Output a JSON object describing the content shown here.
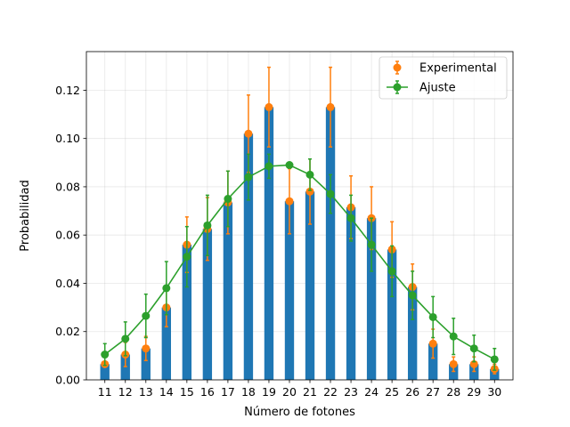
{
  "chart_data": {
    "type": "bar",
    "xlabel": "Número de fotones",
    "ylabel": "Probabilidad",
    "xlim": [
      10.1,
      30.9
    ],
    "ylim": [
      0.0,
      0.136
    ],
    "x_ticks": [
      11,
      12,
      13,
      14,
      15,
      16,
      17,
      18,
      19,
      20,
      21,
      22,
      23,
      24,
      25,
      26,
      27,
      28,
      29,
      30
    ],
    "y_ticks": [
      0.0,
      0.02,
      0.04,
      0.06,
      0.08,
      0.1,
      0.12
    ],
    "y_tick_labels": [
      "0.00",
      "0.02",
      "0.04",
      "0.06",
      "0.08",
      "0.10",
      "0.12"
    ],
    "grid": true,
    "legend_position": "upper right",
    "bars": {
      "color": "#1f77b4",
      "x": [
        11,
        12,
        13,
        14,
        15,
        16,
        17,
        18,
        19,
        20,
        21,
        22,
        23,
        24,
        25,
        26,
        27,
        28,
        29,
        30
      ],
      "values": [
        0.0065,
        0.0105,
        0.013,
        0.03,
        0.056,
        0.0625,
        0.0735,
        0.102,
        0.113,
        0.074,
        0.078,
        0.113,
        0.0715,
        0.067,
        0.054,
        0.0385,
        0.015,
        0.0065,
        0.0065,
        0.0045
      ]
    },
    "series": [
      {
        "name": "Experimental",
        "color": "#ff7f0e",
        "x": [
          11,
          12,
          13,
          14,
          15,
          16,
          17,
          18,
          19,
          20,
          21,
          22,
          23,
          24,
          25,
          26,
          27,
          28,
          29,
          30
        ],
        "values": [
          0.0065,
          0.0105,
          0.013,
          0.03,
          0.056,
          0.0625,
          0.0735,
          0.102,
          0.113,
          0.074,
          0.078,
          0.113,
          0.0715,
          0.067,
          0.054,
          0.0385,
          0.015,
          0.0065,
          0.0065,
          0.0045
        ],
        "errors": [
          0.001,
          0.005,
          0.005,
          0.008,
          0.0115,
          0.013,
          0.013,
          0.016,
          0.0165,
          0.0135,
          0.0135,
          0.0165,
          0.013,
          0.013,
          0.0115,
          0.0095,
          0.006,
          0.003,
          0.003,
          0.002
        ]
      },
      {
        "name": "Ajuste",
        "color": "#2ca02c",
        "x": [
          11,
          12,
          13,
          14,
          15,
          16,
          17,
          18,
          19,
          20,
          21,
          22,
          23,
          24,
          25,
          26,
          27,
          28,
          29,
          30
        ],
        "values": [
          0.0105,
          0.017,
          0.0265,
          0.038,
          0.051,
          0.064,
          0.075,
          0.084,
          0.0885,
          0.089,
          0.085,
          0.077,
          0.067,
          0.056,
          0.045,
          0.035,
          0.026,
          0.018,
          0.013,
          0.0085
        ],
        "errors": [
          0.0045,
          0.007,
          0.009,
          0.011,
          0.0125,
          0.0125,
          0.0115,
          0.0095,
          0.005,
          0.0,
          0.0065,
          0.008,
          0.0095,
          0.011,
          0.0105,
          0.01,
          0.0085,
          0.0075,
          0.0055,
          0.0045
        ]
      }
    ]
  }
}
